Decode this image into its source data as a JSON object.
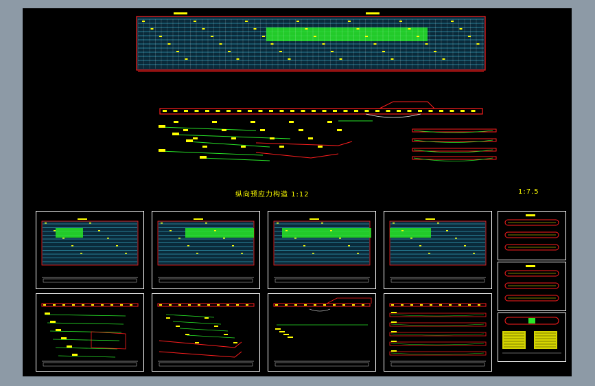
{
  "drawing": {
    "main_caption": "纵向预应力构造  1:12",
    "scale_caption": "1:7.5"
  },
  "colors": {
    "background_outer": "#8d9aa6",
    "canvas": "#000000",
    "grid_cyan": "#46d2f2",
    "highlight_green": "#28e628",
    "outline_red": "#ff1e1e",
    "annotation_yellow": "#ffff00",
    "frame_white": "#ffffff"
  },
  "thumbnails": {
    "top_row_count": 4,
    "bottom_row_count": 4,
    "side_count": 3
  }
}
